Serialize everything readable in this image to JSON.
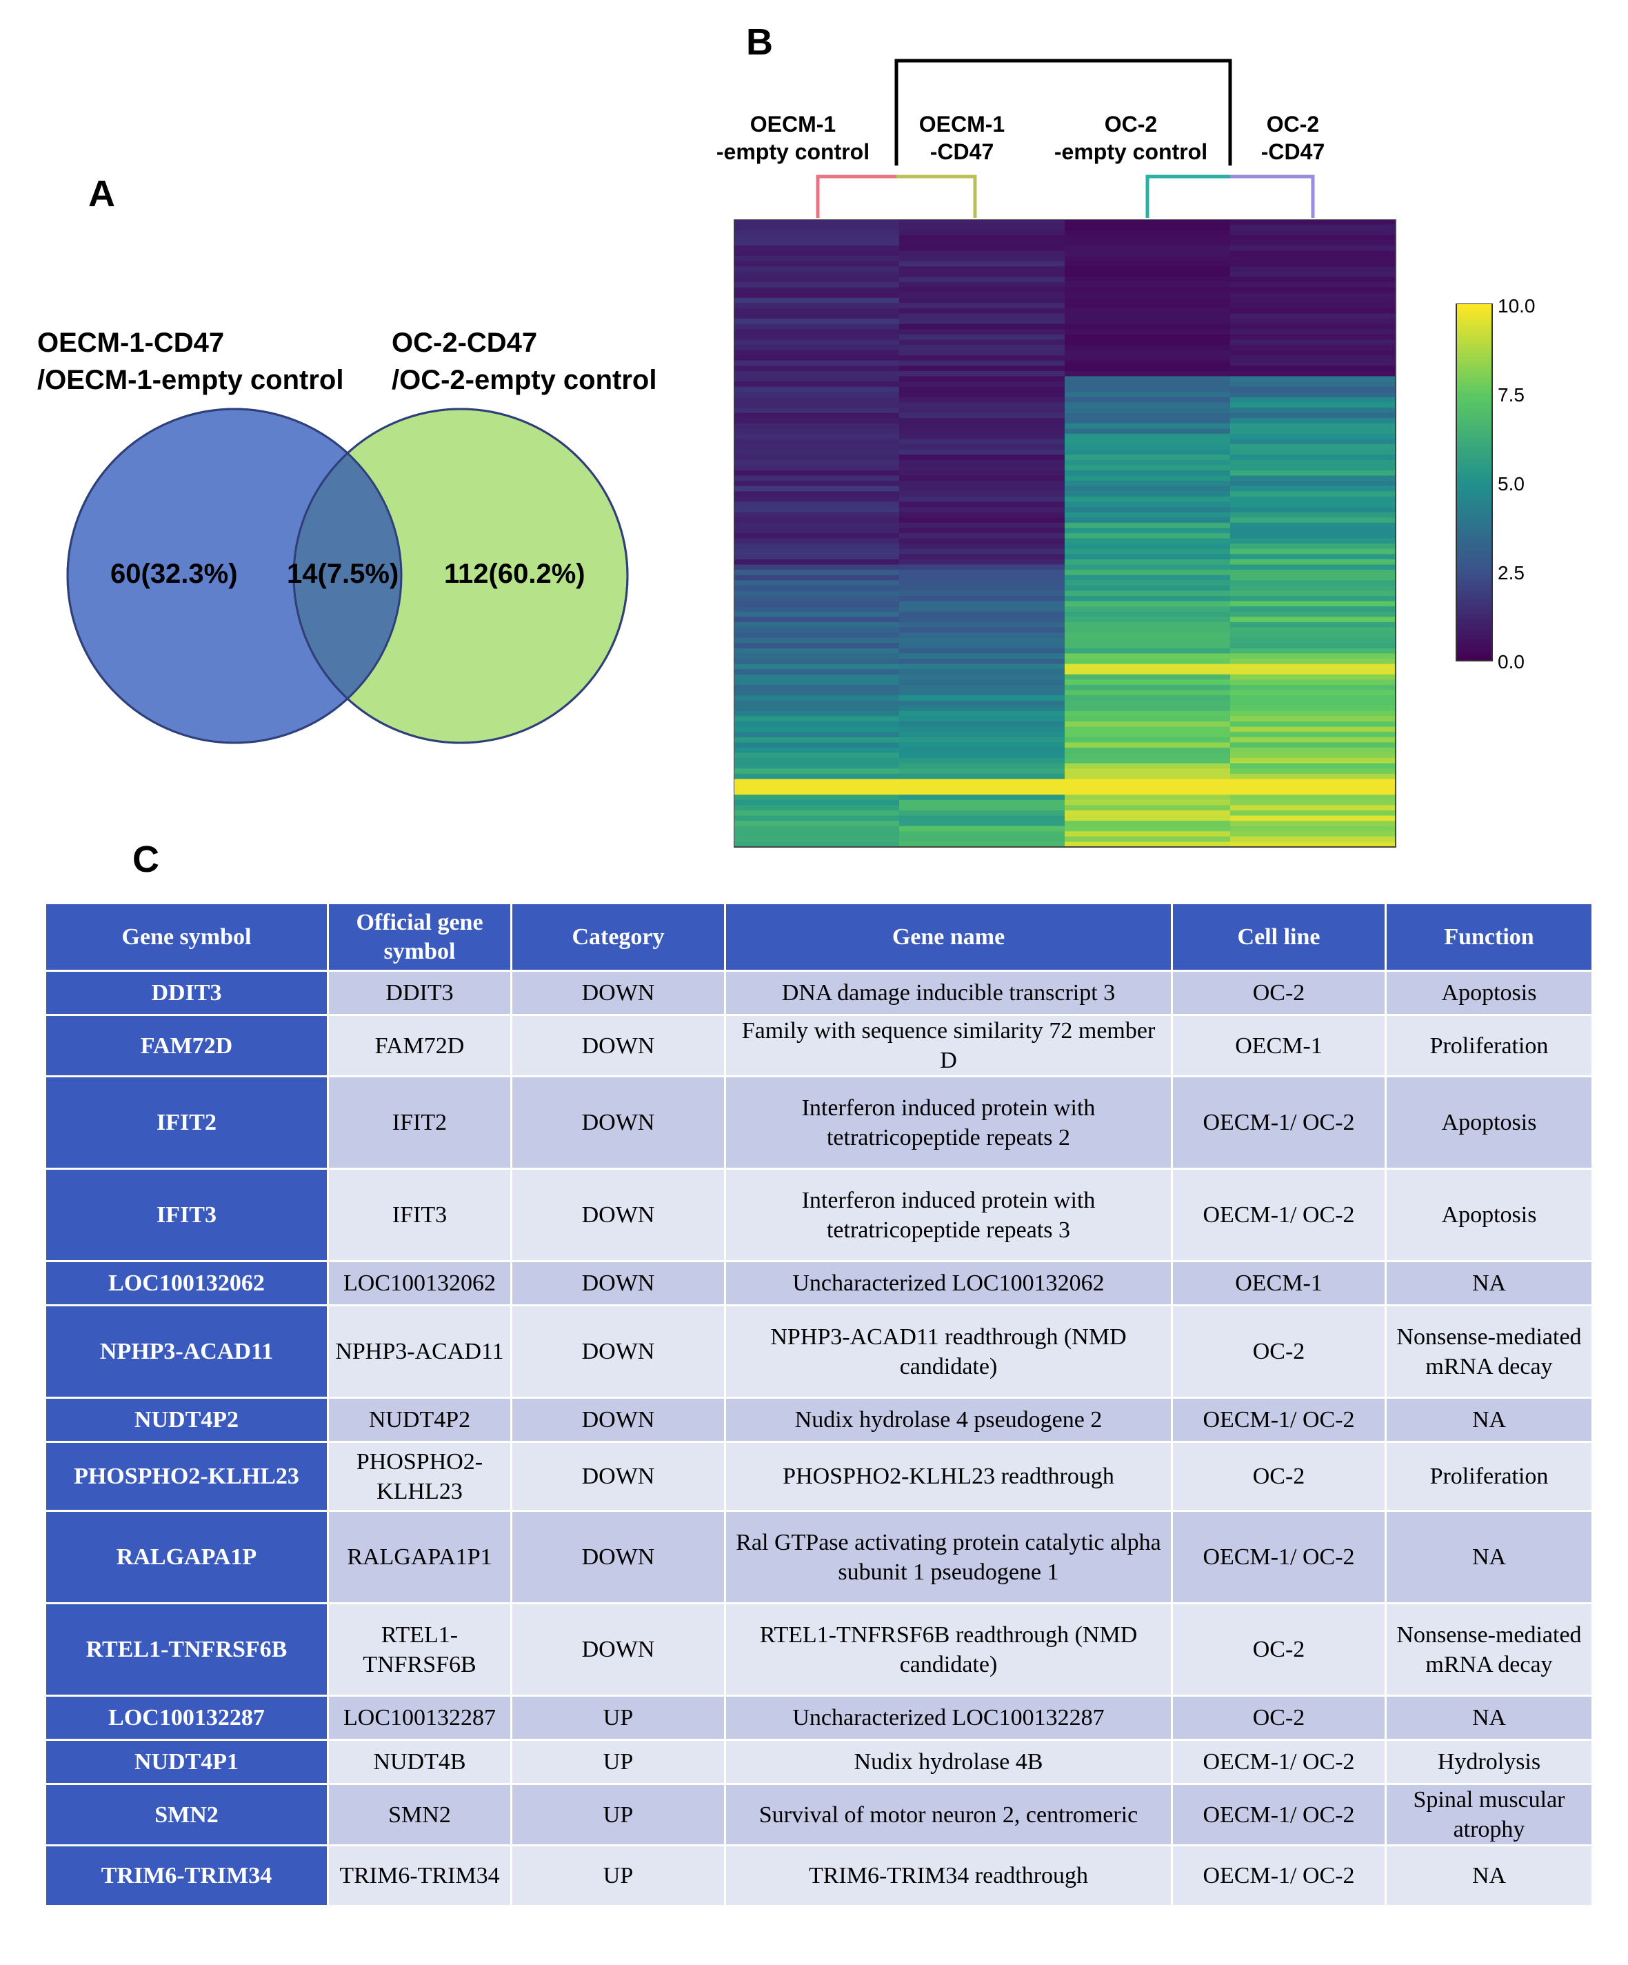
{
  "panels": {
    "a": "A",
    "b": "B",
    "c": "C"
  },
  "venn": {
    "left_label_line1": "OECM-1-CD47",
    "left_label_line2": "/OECM-1-empty control",
    "right_label_line1": "OC-2-CD47",
    "right_label_line2": "/OC-2-empty control",
    "left_only": "60(32.3%)",
    "overlap": "14(7.5%)",
    "right_only": "112(60.2%)",
    "left_color": "#6180cc",
    "right_color": "#b6e28a",
    "overlap_color": "#4f78a8"
  },
  "heatmap": {
    "columns": [
      {
        "line1": "OECM-1",
        "line2": "-empty control"
      },
      {
        "line1": "OECM-1",
        "line2": "-CD47"
      },
      {
        "line1": "OC-2",
        "line2": "-empty control"
      },
      {
        "line1": "OC-2",
        "line2": "-CD47"
      }
    ],
    "colorbar_ticks": [
      "10.0",
      "7.5",
      "5.0",
      "2.5",
      "0.0"
    ],
    "color_min": 0.0,
    "color_max": 10.0
  },
  "table": {
    "headers": [
      "Gene symbol",
      "Official gene symbol",
      "Category",
      "Gene name",
      "Cell line",
      "Function"
    ],
    "rows": [
      [
        "DDIT3",
        "DDIT3",
        "DOWN",
        "DNA damage inducible transcript 3",
        "OC-2",
        "Apoptosis"
      ],
      [
        "FAM72D",
        "FAM72D",
        "DOWN",
        "Family with sequence similarity 72 member D",
        "OECM-1",
        "Proliferation"
      ],
      [
        "IFIT2",
        "IFIT2",
        "DOWN",
        "Interferon induced protein with tetratricopeptide repeats 2",
        "OECM-1/ OC-2",
        "Apoptosis"
      ],
      [
        "IFIT3",
        "IFIT3",
        "DOWN",
        "Interferon induced protein with tetratricopeptide repeats 3",
        "OECM-1/ OC-2",
        "Apoptosis"
      ],
      [
        "LOC100132062",
        "LOC100132062",
        "DOWN",
        "Uncharacterized LOC100132062",
        "OECM-1",
        "NA"
      ],
      [
        "NPHP3-ACAD11",
        "NPHP3-ACAD11",
        "DOWN",
        "NPHP3-ACAD11 readthrough (NMD candidate)",
        "OC-2",
        "Nonsense-mediated mRNA decay"
      ],
      [
        "NUDT4P2",
        "NUDT4P2",
        "DOWN",
        "Nudix hydrolase 4 pseudogene 2",
        "OECM-1/ OC-2",
        "NA"
      ],
      [
        "PHOSPHO2-KLHL23",
        "PHOSPHO2-KLHL23",
        "DOWN",
        "PHOSPHO2-KLHL23 readthrough",
        "OC-2",
        "Proliferation"
      ],
      [
        "RALGAPA1P",
        "RALGAPA1P1",
        "DOWN",
        "Ral GTPase activating protein catalytic alpha subunit 1 pseudogene 1",
        "OECM-1/ OC-2",
        "NA"
      ],
      [
        "RTEL1-TNFRSF6B",
        "RTEL1-TNFRSF6B",
        "DOWN",
        "RTEL1-TNFRSF6B readthrough (NMD candidate)",
        "OC-2",
        "Nonsense-mediated mRNA decay"
      ],
      [
        "LOC100132287",
        "LOC100132287",
        "UP",
        "Uncharacterized LOC100132287",
        "OC-2",
        "NA"
      ],
      [
        "NUDT4P1",
        "NUDT4B",
        "UP",
        "Nudix hydrolase 4B",
        "OECM-1/ OC-2",
        "Hydrolysis"
      ],
      [
        "SMN2",
        "SMN2",
        "UP",
        "Survival of motor neuron 2, centromeric",
        "OECM-1/ OC-2",
        "Spinal muscular atrophy"
      ],
      [
        "TRIM6-TRIM34",
        "TRIM6-TRIM34",
        "UP",
        "TRIM6-TRIM34 readthrough",
        "OECM-1/ OC-2",
        "NA"
      ]
    ]
  }
}
